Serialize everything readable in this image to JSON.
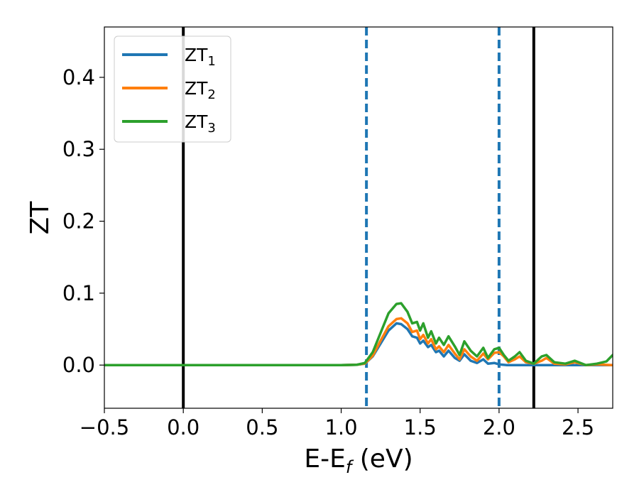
{
  "chart_data": {
    "type": "line",
    "title": "",
    "xlabel": "E-E",
    "xlabel_sub": "f",
    "xlabel_unit": " (eV)",
    "ylabel": "ZT",
    "xlim": [
      -0.5,
      2.72
    ],
    "ylim": [
      -0.06,
      0.47
    ],
    "xticks": [
      -0.5,
      0.0,
      0.5,
      1.0,
      1.5,
      2.0,
      2.5
    ],
    "xtick_labels": [
      "−0.5",
      "0.0",
      "0.5",
      "1.0",
      "1.5",
      "2.0",
      "2.5"
    ],
    "yticks": [
      0.0,
      0.1,
      0.2,
      0.3,
      0.4
    ],
    "ytick_labels": [
      "0.0",
      "0.1",
      "0.2",
      "0.3",
      "0.4"
    ],
    "grid": false,
    "legend_position": "top-left",
    "vlines": [
      {
        "x": 0.0,
        "style": "solid",
        "color": "#000000"
      },
      {
        "x": 2.22,
        "style": "solid",
        "color": "#000000"
      },
      {
        "x": 1.16,
        "style": "dashed",
        "color": "#1f77b4"
      },
      {
        "x": 2.0,
        "style": "dashed",
        "color": "#1f77b4"
      }
    ],
    "series": [
      {
        "name": "ZT",
        "sub": "1",
        "color": "#1f77b4",
        "x": [
          -0.5,
          1.0,
          1.1,
          1.15,
          1.2,
          1.25,
          1.3,
          1.35,
          1.38,
          1.42,
          1.45,
          1.48,
          1.5,
          1.52,
          1.55,
          1.57,
          1.6,
          1.62,
          1.65,
          1.68,
          1.72,
          1.75,
          1.78,
          1.82,
          1.86,
          1.9,
          1.93,
          1.97,
          2.0,
          2.05,
          2.2,
          2.72
        ],
        "y": [
          0.0,
          0.0,
          0.0005,
          0.002,
          0.012,
          0.03,
          0.048,
          0.058,
          0.057,
          0.05,
          0.04,
          0.038,
          0.03,
          0.034,
          0.025,
          0.028,
          0.018,
          0.02,
          0.012,
          0.02,
          0.01,
          0.006,
          0.015,
          0.006,
          0.003,
          0.008,
          0.002,
          0.003,
          0.001,
          0.0,
          0.0,
          0.0
        ]
      },
      {
        "name": "ZT",
        "sub": "2",
        "color": "#ff7f0e",
        "x": [
          -0.5,
          1.0,
          1.1,
          1.15,
          1.2,
          1.25,
          1.3,
          1.35,
          1.38,
          1.42,
          1.45,
          1.48,
          1.5,
          1.52,
          1.55,
          1.57,
          1.6,
          1.62,
          1.65,
          1.68,
          1.72,
          1.75,
          1.78,
          1.82,
          1.86,
          1.9,
          1.93,
          1.97,
          2.0,
          2.03,
          2.06,
          2.1,
          2.13,
          2.17,
          2.22,
          2.27,
          2.3,
          2.35,
          2.42,
          2.48,
          2.55,
          2.62,
          2.72
        ],
        "y": [
          0.0,
          0.0,
          0.0005,
          0.002,
          0.013,
          0.034,
          0.054,
          0.064,
          0.065,
          0.058,
          0.046,
          0.048,
          0.036,
          0.042,
          0.03,
          0.036,
          0.022,
          0.026,
          0.018,
          0.028,
          0.016,
          0.008,
          0.022,
          0.012,
          0.006,
          0.016,
          0.008,
          0.017,
          0.018,
          0.012,
          0.004,
          0.008,
          0.012,
          0.004,
          0.002,
          0.006,
          0.01,
          0.002,
          0.001,
          0.004,
          0.0,
          0.001,
          0.0
        ]
      },
      {
        "name": "ZT",
        "sub": "3",
        "color": "#2ca02c",
        "x": [
          -0.5,
          1.0,
          1.1,
          1.15,
          1.2,
          1.25,
          1.3,
          1.35,
          1.38,
          1.42,
          1.45,
          1.48,
          1.5,
          1.52,
          1.55,
          1.57,
          1.6,
          1.62,
          1.65,
          1.68,
          1.72,
          1.75,
          1.78,
          1.82,
          1.86,
          1.9,
          1.93,
          1.97,
          2.0,
          2.03,
          2.06,
          2.1,
          2.13,
          2.17,
          2.22,
          2.27,
          2.3,
          2.35,
          2.42,
          2.48,
          2.55,
          2.62,
          2.68,
          2.72
        ],
        "y": [
          0.0,
          0.0,
          0.0005,
          0.003,
          0.018,
          0.045,
          0.072,
          0.085,
          0.086,
          0.074,
          0.058,
          0.06,
          0.048,
          0.058,
          0.038,
          0.047,
          0.03,
          0.038,
          0.028,
          0.04,
          0.026,
          0.014,
          0.033,
          0.02,
          0.012,
          0.024,
          0.01,
          0.022,
          0.024,
          0.014,
          0.006,
          0.012,
          0.018,
          0.006,
          0.002,
          0.012,
          0.014,
          0.004,
          0.002,
          0.006,
          0.0,
          0.002,
          0.005,
          0.014
        ]
      }
    ]
  }
}
